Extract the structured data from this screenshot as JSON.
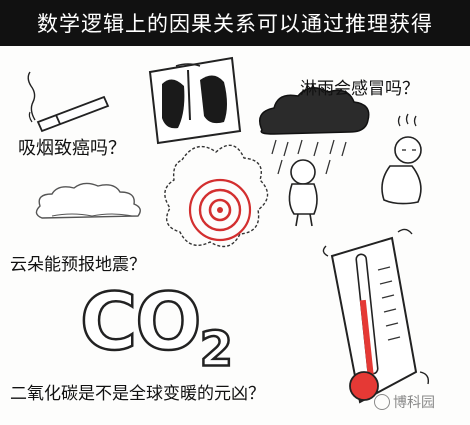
{
  "banner": {
    "title": "数学逻辑上的因果关系可以通过推理获得"
  },
  "questions": {
    "smoking": "吸烟致癌吗？",
    "rain": "淋雨会感冒吗？",
    "cloud": "云朵能预报地震？",
    "co2": "二氧化碳是不是全球变暖的元凶？"
  },
  "co2_label": {
    "main": "CO",
    "sub": "2"
  },
  "watermark": {
    "text": "博科园"
  },
  "colors": {
    "banner_bg": "#111111",
    "target_red": "#d32f2f",
    "thermo_red": "#e53935"
  }
}
